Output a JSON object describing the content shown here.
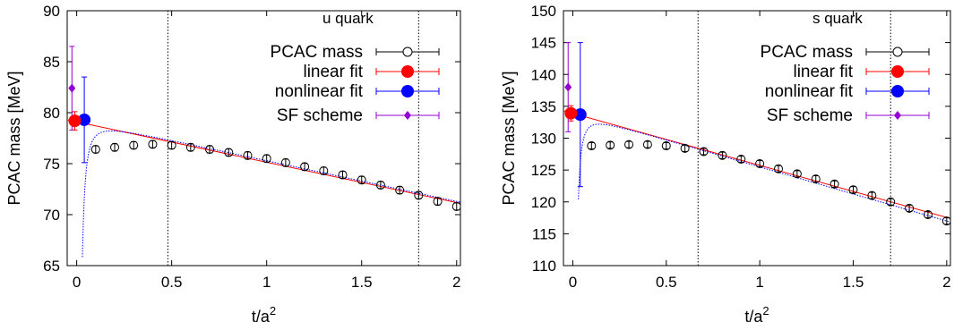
{
  "chart_data": [
    {
      "type": "scatter",
      "annotation": "u quark",
      "xlabel": "t/a",
      "xlabel_sup": "2",
      "ylabel": "PCAC mass [MeV]",
      "xlim": [
        -0.05,
        2.02
      ],
      "ylim": [
        65,
        90
      ],
      "xticks": [
        0,
        0.5,
        1,
        1.5,
        2
      ],
      "xtick_labels": [
        "0",
        "0.5",
        "1",
        "1.5",
        "2"
      ],
      "yticks": [
        65,
        70,
        75,
        80,
        85,
        90
      ],
      "ytick_labels": [
        "65",
        "70",
        "75",
        "80",
        "85",
        "90"
      ],
      "vlines": [
        0.48,
        1.8
      ],
      "legend_position": "top-right",
      "series": [
        {
          "name": "PCAC mass",
          "style": "open-circle",
          "color": "#000000",
          "x": [
            0.1,
            0.2,
            0.3,
            0.4,
            0.5,
            0.6,
            0.7,
            0.8,
            0.9,
            1.0,
            1.1,
            1.2,
            1.3,
            1.4,
            1.5,
            1.6,
            1.7,
            1.8,
            1.9,
            2.0
          ],
          "y": [
            76.4,
            76.6,
            76.8,
            76.9,
            76.8,
            76.6,
            76.4,
            76.1,
            75.8,
            75.5,
            75.1,
            74.7,
            74.3,
            73.9,
            73.4,
            72.9,
            72.4,
            71.9,
            71.3,
            70.8
          ],
          "yerr": [
            0.35,
            0.35,
            0.35,
            0.35,
            0.35,
            0.35,
            0.35,
            0.35,
            0.35,
            0.35,
            0.35,
            0.35,
            0.35,
            0.35,
            0.35,
            0.35,
            0.35,
            0.35,
            0.35,
            0.35
          ]
        },
        {
          "name": "linear fit",
          "style": "line+point",
          "color": "#ff0000",
          "line": {
            "x": [
              -0.05,
              2.02
            ],
            "y": [
              79.3,
              71.1
            ]
          },
          "point": {
            "x": -0.01,
            "y": 79.2,
            "yerr": 0.9
          }
        },
        {
          "name": "nonlinear fit",
          "style": "dotted+point",
          "color": "#0000ff",
          "curve": {
            "a": 79.3,
            "b": -4.0,
            "c": -0.012,
            "xmin": 0.03,
            "xmax": 2.02
          },
          "point": {
            "x": 0.04,
            "y": 79.3,
            "yerr": 4.2
          }
        },
        {
          "name": "SF scheme",
          "style": "diamond",
          "color": "#9400d3",
          "point": {
            "x": -0.025,
            "y": 82.4,
            "yerr": 4.1
          }
        }
      ]
    },
    {
      "type": "scatter",
      "annotation": "s quark",
      "xlabel": "t/a",
      "xlabel_sup": "2",
      "ylabel": "PCAC mass [MeV]",
      "xlim": [
        -0.05,
        2.02
      ],
      "ylim": [
        110,
        150
      ],
      "xticks": [
        0,
        0.5,
        1,
        1.5,
        2
      ],
      "xtick_labels": [
        "0",
        "0.5",
        "1",
        "1.5",
        "2"
      ],
      "yticks": [
        110,
        115,
        120,
        125,
        130,
        135,
        140,
        145,
        150
      ],
      "ytick_labels": [
        "110",
        "115",
        "120",
        "125",
        "130",
        "135",
        "140",
        "145",
        "150"
      ],
      "vlines": [
        0.67,
        1.7
      ],
      "legend_position": "top-right",
      "series": [
        {
          "name": "PCAC mass",
          "style": "open-circle",
          "color": "#000000",
          "x": [
            0.1,
            0.2,
            0.3,
            0.4,
            0.5,
            0.6,
            0.7,
            0.8,
            0.9,
            1.0,
            1.1,
            1.2,
            1.3,
            1.4,
            1.5,
            1.6,
            1.7,
            1.8,
            1.9,
            2.0
          ],
          "y": [
            128.8,
            128.9,
            129.0,
            129.0,
            128.8,
            128.4,
            127.9,
            127.3,
            126.7,
            126.0,
            125.2,
            124.4,
            123.6,
            122.8,
            121.9,
            121.0,
            120.0,
            119.0,
            118.0,
            117.0
          ],
          "yerr": [
            0.5,
            0.5,
            0.5,
            0.5,
            0.5,
            0.5,
            0.5,
            0.5,
            0.5,
            0.5,
            0.5,
            0.5,
            0.5,
            0.5,
            0.5,
            0.5,
            0.5,
            0.5,
            0.5,
            0.5
          ]
        },
        {
          "name": "linear fit",
          "style": "line+point",
          "color": "#ff0000",
          "line": {
            "x": [
              -0.05,
              2.02
            ],
            "y": [
              134.3,
              117.4
            ]
          },
          "point": {
            "x": -0.01,
            "y": 133.9,
            "yerr": 1.2
          }
        },
        {
          "name": "nonlinear fit",
          "style": "dotted+point",
          "color": "#0000ff",
          "curve": {
            "a": 134.0,
            "b": -8.5,
            "c": -0.012,
            "xmin": 0.03,
            "xmax": 2.02
          },
          "point": {
            "x": 0.04,
            "y": 133.7,
            "yerr": 11.3
          }
        },
        {
          "name": "SF scheme",
          "style": "diamond",
          "color": "#9400d3",
          "point": {
            "x": -0.025,
            "y": 138.0,
            "yerr": 7.0
          }
        }
      ]
    }
  ]
}
